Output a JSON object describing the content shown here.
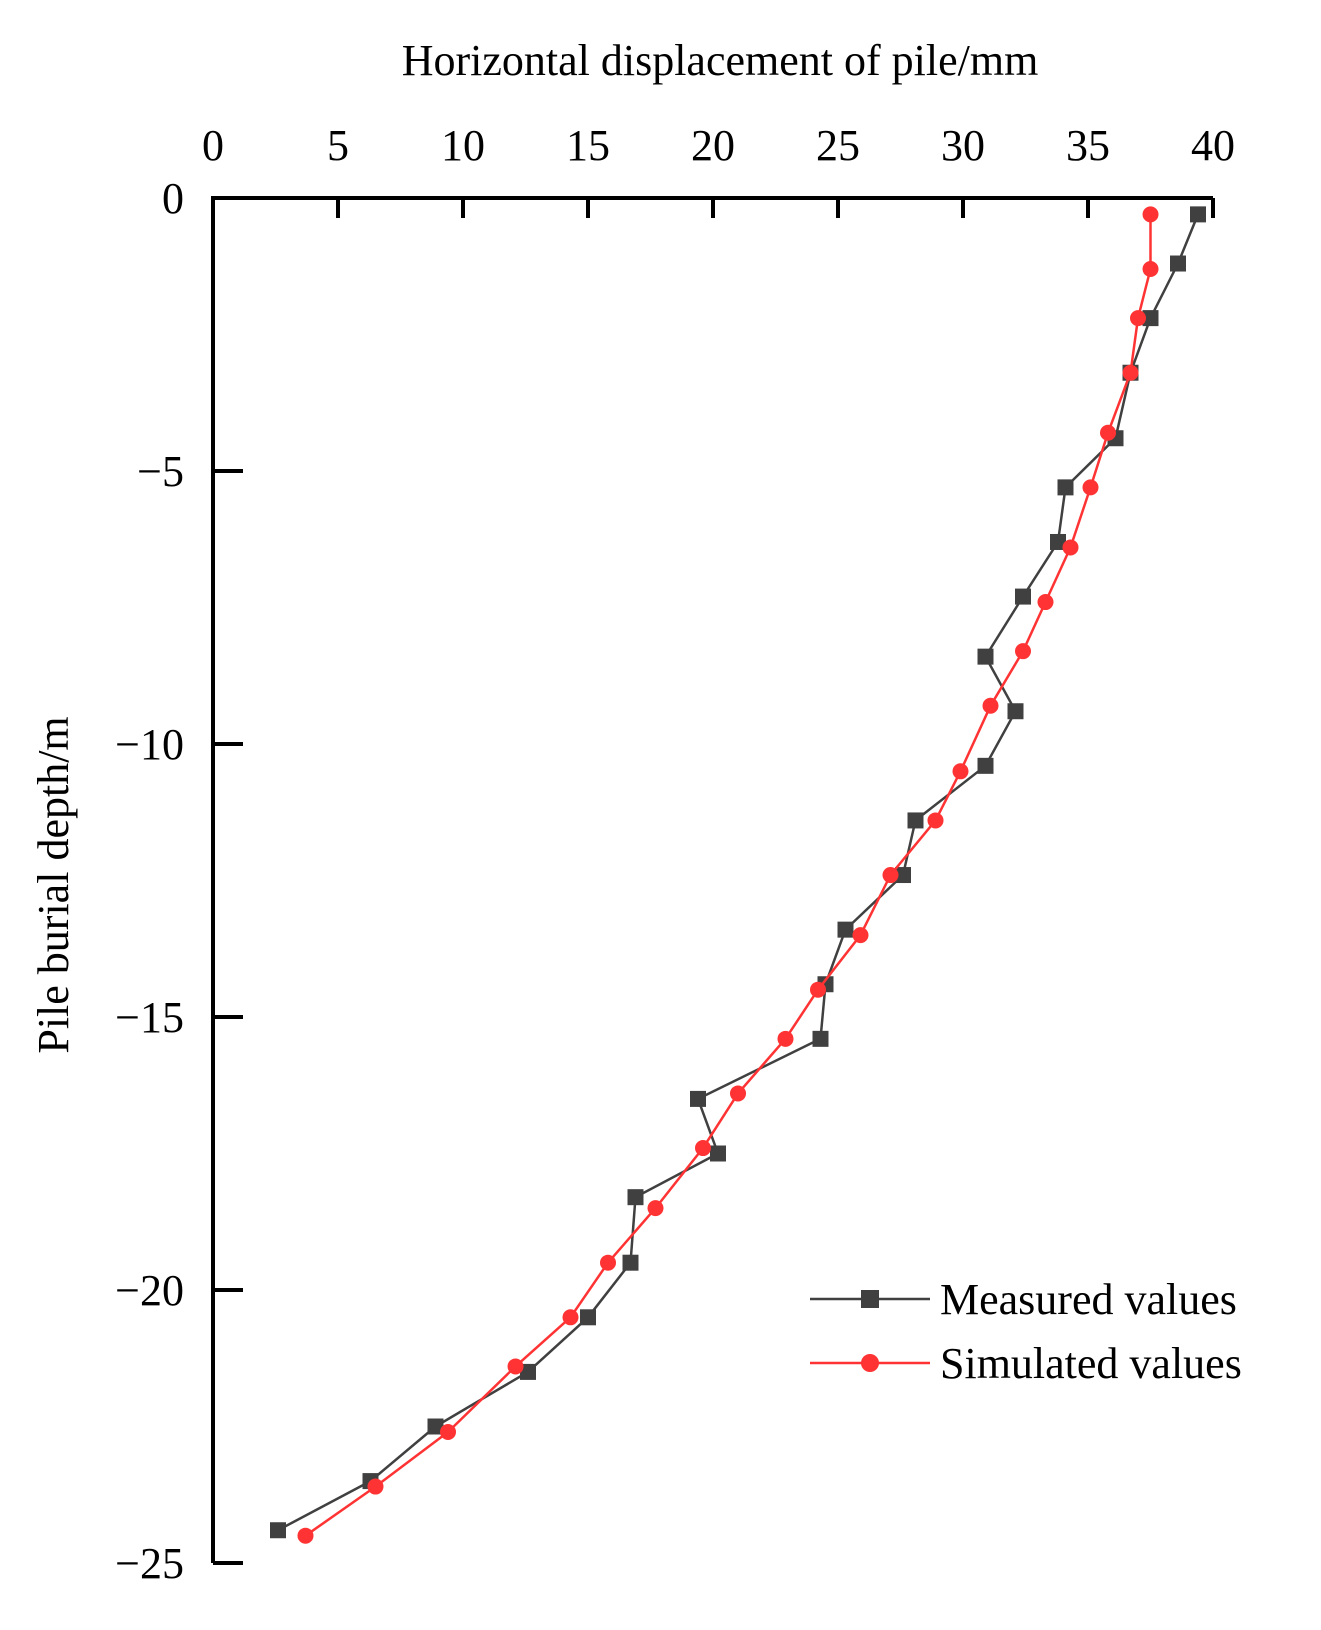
{
  "chart_data": {
    "type": "line",
    "title": "",
    "xlabel": "Horizontal displacement of pile/mm",
    "ylabel": "Pile burial depth/m",
    "xlim": [
      0,
      40
    ],
    "ylim": [
      -25,
      0
    ],
    "x_ticks": [
      0,
      5,
      10,
      15,
      20,
      25,
      30,
      35,
      40
    ],
    "y_ticks": [
      0,
      -5,
      -10,
      -15,
      -20,
      -25
    ],
    "x_tick_labels": [
      "0",
      "5",
      "10",
      "15",
      "20",
      "25",
      "30",
      "35",
      "40"
    ],
    "y_tick_labels": [
      "0",
      "-5",
      "-10",
      "-15",
      "-20",
      "-25"
    ],
    "x_axis_position": "top",
    "grid": false,
    "legend_position": "bottom-right",
    "series": [
      {
        "name": "Measured values",
        "color": "#404040",
        "marker": "square",
        "points": [
          {
            "x": 39.4,
            "y": -0.3
          },
          {
            "x": 38.6,
            "y": -1.2
          },
          {
            "x": 37.5,
            "y": -2.2
          },
          {
            "x": 36.7,
            "y": -3.2
          },
          {
            "x": 36.1,
            "y": -4.4
          },
          {
            "x": 34.1,
            "y": -5.3
          },
          {
            "x": 33.8,
            "y": -6.3
          },
          {
            "x": 32.4,
            "y": -7.3
          },
          {
            "x": 30.9,
            "y": -8.4
          },
          {
            "x": 32.1,
            "y": -9.4
          },
          {
            "x": 30.9,
            "y": -10.4
          },
          {
            "x": 28.1,
            "y": -11.4
          },
          {
            "x": 27.6,
            "y": -12.4
          },
          {
            "x": 25.3,
            "y": -13.4
          },
          {
            "x": 24.5,
            "y": -14.4
          },
          {
            "x": 24.3,
            "y": -15.4
          },
          {
            "x": 19.4,
            "y": -16.5
          },
          {
            "x": 20.2,
            "y": -17.5
          },
          {
            "x": 16.9,
            "y": -18.3
          },
          {
            "x": 16.7,
            "y": -19.5
          },
          {
            "x": 15.0,
            "y": -20.5
          },
          {
            "x": 12.6,
            "y": -21.5
          },
          {
            "x": 8.9,
            "y": -22.5
          },
          {
            "x": 6.3,
            "y": -23.5
          },
          {
            "x": 2.6,
            "y": -24.4
          }
        ]
      },
      {
        "name": "Simulated values",
        "color": "#ff3333",
        "marker": "circle",
        "points": [
          {
            "x": 37.5,
            "y": -0.3
          },
          {
            "x": 37.5,
            "y": -1.3
          },
          {
            "x": 37.0,
            "y": -2.2
          },
          {
            "x": 36.7,
            "y": -3.2
          },
          {
            "x": 35.8,
            "y": -4.3
          },
          {
            "x": 35.1,
            "y": -5.3
          },
          {
            "x": 34.3,
            "y": -6.4
          },
          {
            "x": 33.3,
            "y": -7.4
          },
          {
            "x": 32.4,
            "y": -8.3
          },
          {
            "x": 31.1,
            "y": -9.3
          },
          {
            "x": 29.9,
            "y": -10.5
          },
          {
            "x": 28.9,
            "y": -11.4
          },
          {
            "x": 27.1,
            "y": -12.4
          },
          {
            "x": 25.9,
            "y": -13.5
          },
          {
            "x": 24.2,
            "y": -14.5
          },
          {
            "x": 22.9,
            "y": -15.4
          },
          {
            "x": 21.0,
            "y": -16.4
          },
          {
            "x": 19.6,
            "y": -17.4
          },
          {
            "x": 17.7,
            "y": -18.5
          },
          {
            "x": 15.8,
            "y": -19.5
          },
          {
            "x": 14.3,
            "y": -20.5
          },
          {
            "x": 12.1,
            "y": -21.4
          },
          {
            "x": 9.4,
            "y": -22.6
          },
          {
            "x": 6.5,
            "y": -23.6
          },
          {
            "x": 3.7,
            "y": -24.5
          }
        ]
      }
    ]
  }
}
